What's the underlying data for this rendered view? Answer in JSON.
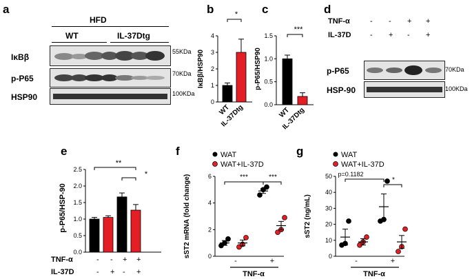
{
  "panels": {
    "a": {
      "letter": "a",
      "group_label": "HFD",
      "wt_label": "WT",
      "tg_label": "IL-37Dtg",
      "rows": [
        {
          "label": "IκBβ",
          "marker": "55KDa"
        },
        {
          "label": "p-P65",
          "marker": "70KDa"
        },
        {
          "label": "HSP90",
          "marker": "100KDa"
        }
      ]
    },
    "b": {
      "letter": "b",
      "sig": "*"
    },
    "c": {
      "letter": "c",
      "sig": "***"
    },
    "d": {
      "letter": "d",
      "tnf_label": "TNF-α",
      "il_label": "IL-37D",
      "tnf_signs": [
        "-",
        "-",
        "+",
        "+"
      ],
      "il_signs": [
        "-",
        "+",
        "-",
        "+"
      ],
      "rows": [
        {
          "label": "p-P65",
          "marker": "70KDa"
        },
        {
          "label": "HSP-90",
          "marker": "100KDa"
        }
      ]
    },
    "e": {
      "letter": "e",
      "sig1": "**",
      "sig2": "*",
      "tnf_label": "TNF-α",
      "il_label": "IL-37D",
      "tnf_signs": [
        "-",
        "-",
        "+",
        "+"
      ],
      "il_signs": [
        "-",
        "+",
        "-",
        "+"
      ]
    },
    "f": {
      "letter": "f",
      "sig1": "***",
      "sig2": "***",
      "legend1": "WAT",
      "legend2": "WAT+IL-37D",
      "tnf_label": "TNF-α",
      "signs": [
        "-",
        "+"
      ]
    },
    "g": {
      "letter": "g",
      "sig1": "p=0.1182",
      "sig2": "*",
      "legend1": "WAT",
      "legend2": "WAT+IL-37D",
      "tnf_label": "TNF-α",
      "signs": [
        "-",
        "+"
      ]
    }
  },
  "colors": {
    "black": "#000000",
    "red": "#e31e24"
  },
  "chart_data": [
    {
      "panel": "b",
      "type": "bar",
      "categories": [
        "WT",
        "IL-37Dtg"
      ],
      "values": [
        1.0,
        3.0
      ],
      "errors": [
        0.15,
        0.8
      ],
      "ylabel": "IκBβ/HSP90",
      "ylim": [
        0,
        4
      ],
      "yticks": [
        "0",
        "1",
        "2",
        "3",
        "4"
      ]
    },
    {
      "panel": "c",
      "type": "bar",
      "categories": [
        "WT",
        "IL-37Dtg"
      ],
      "values": [
        1.0,
        0.18
      ],
      "errors": [
        0.08,
        0.08
      ],
      "ylabel": "p-P65/HSP90",
      "ylim": [
        0,
        1.5
      ],
      "yticks": [
        "0.0",
        "0.5",
        "1.0",
        "1.5"
      ]
    },
    {
      "panel": "e",
      "type": "bar",
      "values": [
        1.0,
        1.05,
        1.67,
        1.27
      ],
      "errors": [
        0.05,
        0.05,
        0.12,
        0.17
      ],
      "ylabel": "p-P65/HSP-90",
      "ylim": [
        0,
        2.5
      ],
      "yticks": [
        "0.0",
        "0.5",
        "1.0",
        "1.5",
        "2.0",
        "2.5"
      ]
    },
    {
      "panel": "f",
      "type": "scatter",
      "groups": [
        {
          "points": [
            0.8,
            1.0,
            1.3
          ],
          "mean": 1.0,
          "err": 0.18
        },
        {
          "points": [
            0.7,
            0.9,
            1.4
          ],
          "mean": 1.0,
          "err": 0.22
        },
        {
          "points": [
            4.6,
            5.0,
            5.2
          ],
          "mean": 4.9,
          "err": 0.18
        },
        {
          "points": [
            1.8,
            2.0,
            2.9
          ],
          "mean": 2.3,
          "err": 0.32
        }
      ],
      "ylabel": "sST2 mRNA (fold change)",
      "ylim": [
        0,
        6
      ],
      "yticks": [
        "0",
        "2",
        "4",
        "6"
      ]
    },
    {
      "panel": "g",
      "type": "scatter",
      "groups": [
        {
          "points": [
            7,
            8,
            22
          ],
          "mean": 12,
          "err": 5
        },
        {
          "points": [
            7,
            9,
            12
          ],
          "mean": 9,
          "err": 2
        },
        {
          "points": [
            22,
            23,
            47
          ],
          "mean": 31,
          "err": 8
        },
        {
          "points": [
            3,
            6,
            17
          ],
          "mean": 9,
          "err": 4
        }
      ],
      "ylabel": "sST2 (ng/mL)",
      "ylim": [
        0,
        50
      ],
      "yticks": [
        "0",
        "10",
        "20",
        "30",
        "40",
        "50"
      ]
    }
  ]
}
